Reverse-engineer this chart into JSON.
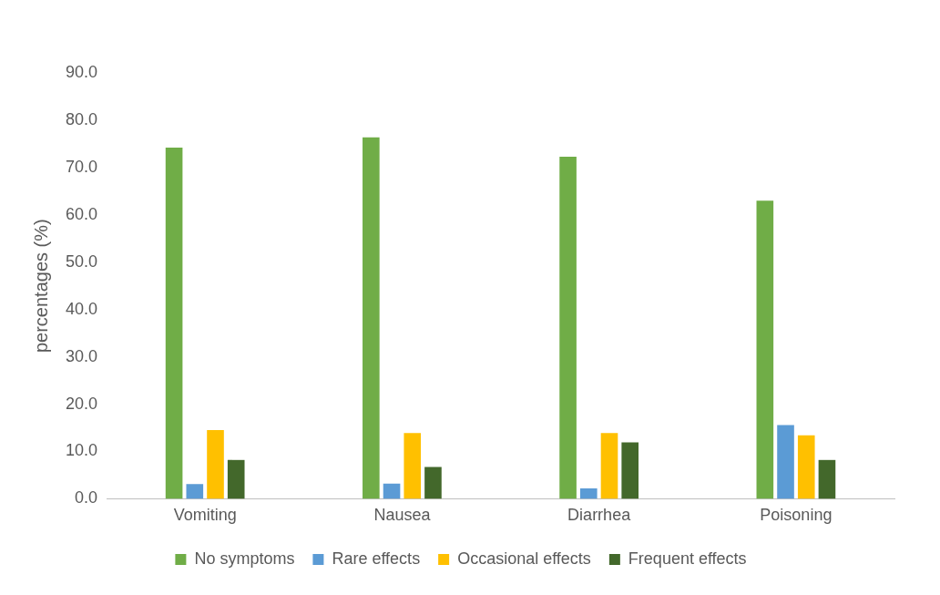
{
  "chart_data": {
    "type": "bar",
    "ylabel": "percentages (%)",
    "categories": [
      "Vomiting",
      "Nausea",
      "Diarrhea",
      "Poisoning"
    ],
    "series": [
      {
        "name": "No symptoms",
        "color": "#70ad47",
        "values": [
          74.2,
          76.4,
          72.3,
          63.0
        ]
      },
      {
        "name": "Rare effects",
        "color": "#5b9bd5",
        "values": [
          3.1,
          3.2,
          2.2,
          15.6
        ]
      },
      {
        "name": "Occasional effects",
        "color": "#ffc000",
        "values": [
          14.5,
          13.9,
          13.9,
          13.4
        ]
      },
      {
        "name": "Frequent effects",
        "color": "#43682b",
        "values": [
          8.2,
          6.7,
          11.9,
          8.2
        ]
      }
    ],
    "ylim": [
      0,
      90
    ],
    "yticks": [
      {
        "value": 0,
        "label": "0.0"
      },
      {
        "value": 10,
        "label": "10.0"
      },
      {
        "value": 20,
        "label": "20.0"
      },
      {
        "value": 30,
        "label": "30.0"
      },
      {
        "value": 40,
        "label": "40.0"
      },
      {
        "value": 50,
        "label": "50.0"
      },
      {
        "value": 60,
        "label": "60.0"
      },
      {
        "value": 70,
        "label": "70.0"
      },
      {
        "value": 80,
        "label": "80.0"
      },
      {
        "value": 90,
        "label": "90.0"
      }
    ],
    "grid": false,
    "legend": "bottom"
  }
}
